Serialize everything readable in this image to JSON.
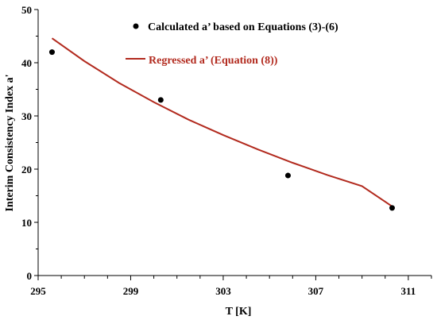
{
  "chart_data": {
    "type": "scatter",
    "xlabel": "T [K]",
    "ylabel": "Interim Consistency Index a'",
    "xlim": [
      295,
      312
    ],
    "ylim": [
      0,
      50
    ],
    "xticks": [
      295,
      299,
      303,
      307,
      311
    ],
    "yticks": [
      0,
      10,
      20,
      30,
      40,
      50
    ],
    "grid": false,
    "legend_position": "top-right",
    "series": [
      {
        "name": "Calculated a’ based on Equations (3)-(6)",
        "kind": "scatter",
        "color": "#000000",
        "x": [
          295.6,
          300.3,
          305.8,
          310.3
        ],
        "y": [
          42.0,
          33.0,
          18.8,
          12.7
        ]
      },
      {
        "name": "Regressed a’ (Equation (8))",
        "kind": "line",
        "color": "#b22a1e",
        "x": [
          295.6,
          297.0,
          298.5,
          300.0,
          301.5,
          303.0,
          304.5,
          306.0,
          307.5,
          309.0,
          310.3
        ],
        "y": [
          44.6,
          40.3,
          36.2,
          32.6,
          29.3,
          26.4,
          23.7,
          21.2,
          18.9,
          16.8,
          13.0
        ]
      }
    ]
  }
}
